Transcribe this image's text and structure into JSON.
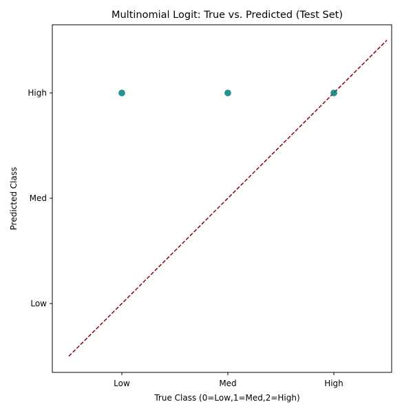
{
  "chart_data": {
    "type": "scatter",
    "title": "Multinomial Logit: True vs. Predicted (Test Set)",
    "xlabel": "True Class (0=Low,1=Med,2=High)",
    "ylabel": "Predicted Class",
    "xlim": [
      -1.0,
      2.5
    ],
    "ylim": [
      -0.65,
      2.65
    ],
    "x_ticks": [
      0,
      1,
      2
    ],
    "x_tick_labels": [
      "Low",
      "Med",
      "High"
    ],
    "y_ticks": [
      0,
      1,
      2
    ],
    "y_tick_labels": [
      "Low",
      "Med",
      "High"
    ],
    "grid": false,
    "legend": "none",
    "series": [
      {
        "color": "#008080",
        "points": [
          {
            "x": 0,
            "y": 2
          },
          {
            "x": 1,
            "y": 2
          },
          {
            "x": 2,
            "y": 2
          }
        ]
      }
    ],
    "reference_line": {
      "style": "dashed",
      "color": "#8b0000",
      "from": [
        -0.5,
        -0.5
      ],
      "to": [
        2.5,
        2.5
      ]
    }
  }
}
